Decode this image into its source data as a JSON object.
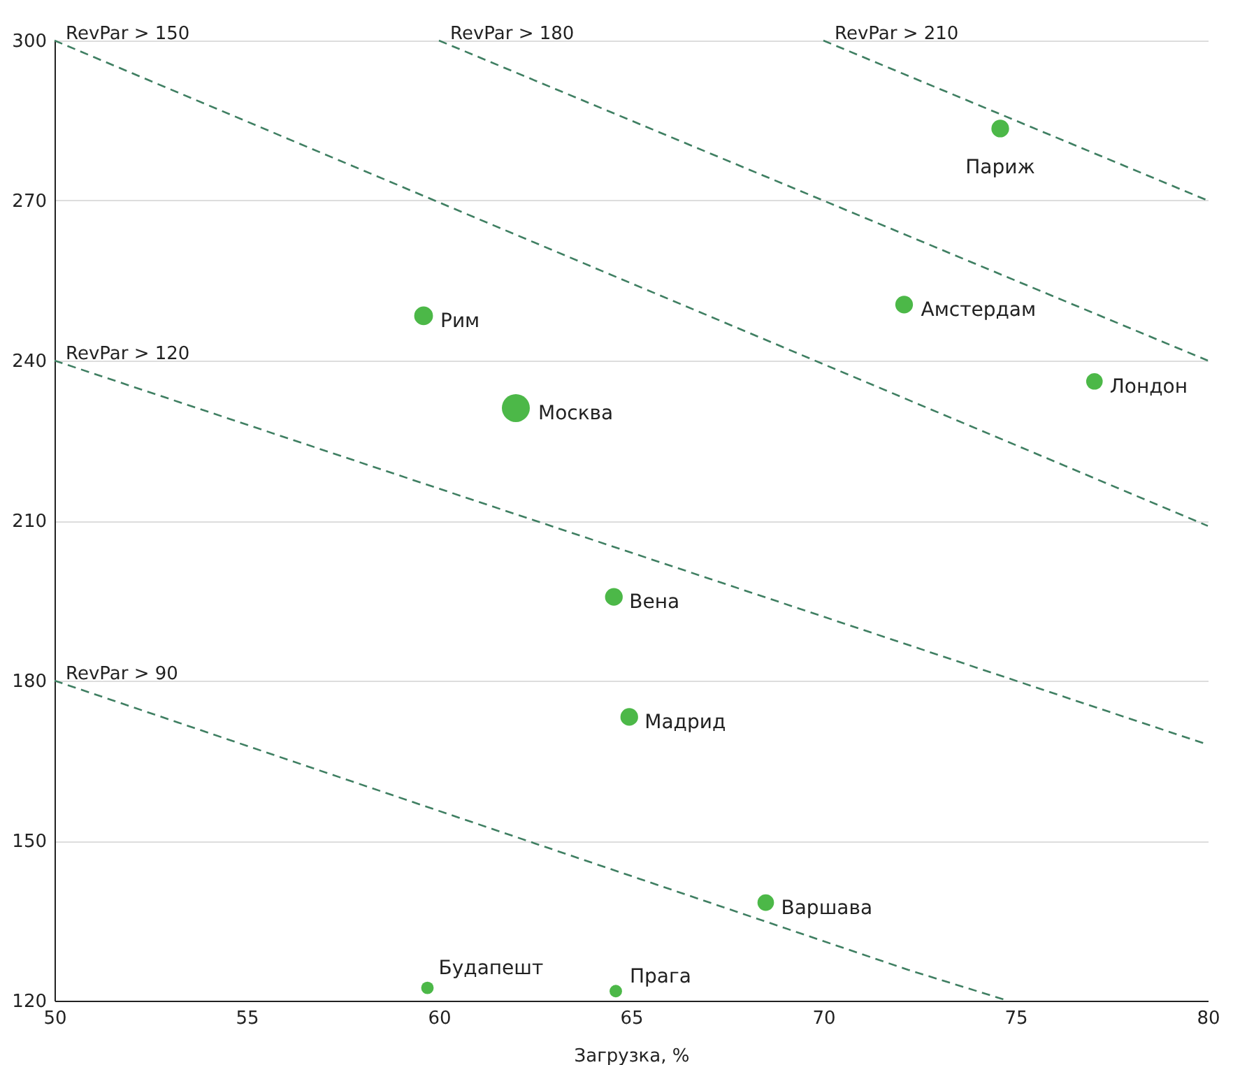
{
  "chart_data": {
    "type": "bubble",
    "xlabel": "Загрузка, %",
    "xlim": [
      50,
      80
    ],
    "xticks": [
      50,
      55,
      60,
      65,
      70,
      75,
      80
    ],
    "ylim": [
      120,
      300
    ],
    "yticks": [
      120,
      150,
      180,
      210,
      240,
      270,
      300
    ],
    "grid": "y",
    "series": [
      {
        "color": "#4cb848",
        "marker": "circle",
        "x": [
          74.6,
          72.1,
          77.05,
          59.6,
          62.0,
          64.55,
          64.95,
          68.5,
          59.7,
          64.6
        ],
        "values": [
          283.5,
          250.5,
          236.1,
          248.4,
          231.1,
          195.7,
          173.2,
          138.4,
          122.4,
          121.8
        ],
        "sizes": [
          0.4,
          0.4,
          0.35,
          0.45,
          1,
          0.4,
          0.4,
          0.35,
          0.2,
          0.2
        ]
      },
      {
        "type": "line",
        "name": "RevPar > 90",
        "color": "#3f7f62",
        "line_style": "dashed",
        "x": [
          50,
          72.2,
          74.8
        ],
        "values": [
          180,
          125.8,
          120
        ]
      },
      {
        "type": "line",
        "name": "RevPar > 120",
        "color": "#3f7f62",
        "line_style": "dashed",
        "x": [
          50,
          80
        ],
        "values": [
          240,
          168
        ]
      },
      {
        "type": "line",
        "name": "RevPar > 150",
        "color": "#3f7f62",
        "line_style": "dashed",
        "x": [
          50,
          80
        ],
        "values": [
          300,
          209
        ]
      },
      {
        "type": "line",
        "name": "RevPar > 180",
        "color": "#3f7f62",
        "line_style": "dashed",
        "x": [
          60,
          80
        ],
        "values": [
          300,
          240
        ]
      },
      {
        "type": "line",
        "name": "RevPar > 210",
        "color": "#3f7f62",
        "line_style": "dashed",
        "x": [
          70,
          80
        ],
        "values": [
          300,
          270
        ]
      }
    ],
    "annotations": [
      {
        "text": "Париж",
        "x": 74.6,
        "y": 283.5
      },
      {
        "text": "Амстердам",
        "x": 72.1,
        "y": 250.5
      },
      {
        "text": "Лондон",
        "x": 77.05,
        "y": 236.1
      },
      {
        "text": "Рим",
        "x": 59.6,
        "y": 248.4
      },
      {
        "text": "Москва",
        "x": 62.0,
        "y": 231.1
      },
      {
        "text": "Вена",
        "x": 64.55,
        "y": 195.7
      },
      {
        "text": "Мадрид",
        "x": 64.95,
        "y": 173.2
      },
      {
        "text": "Варшава",
        "x": 68.5,
        "y": 138.4
      },
      {
        "text": "Будапешт",
        "x": 59.7,
        "y": 122.4
      },
      {
        "text": "Прага",
        "x": 64.6,
        "y": 121.8
      }
    ]
  }
}
